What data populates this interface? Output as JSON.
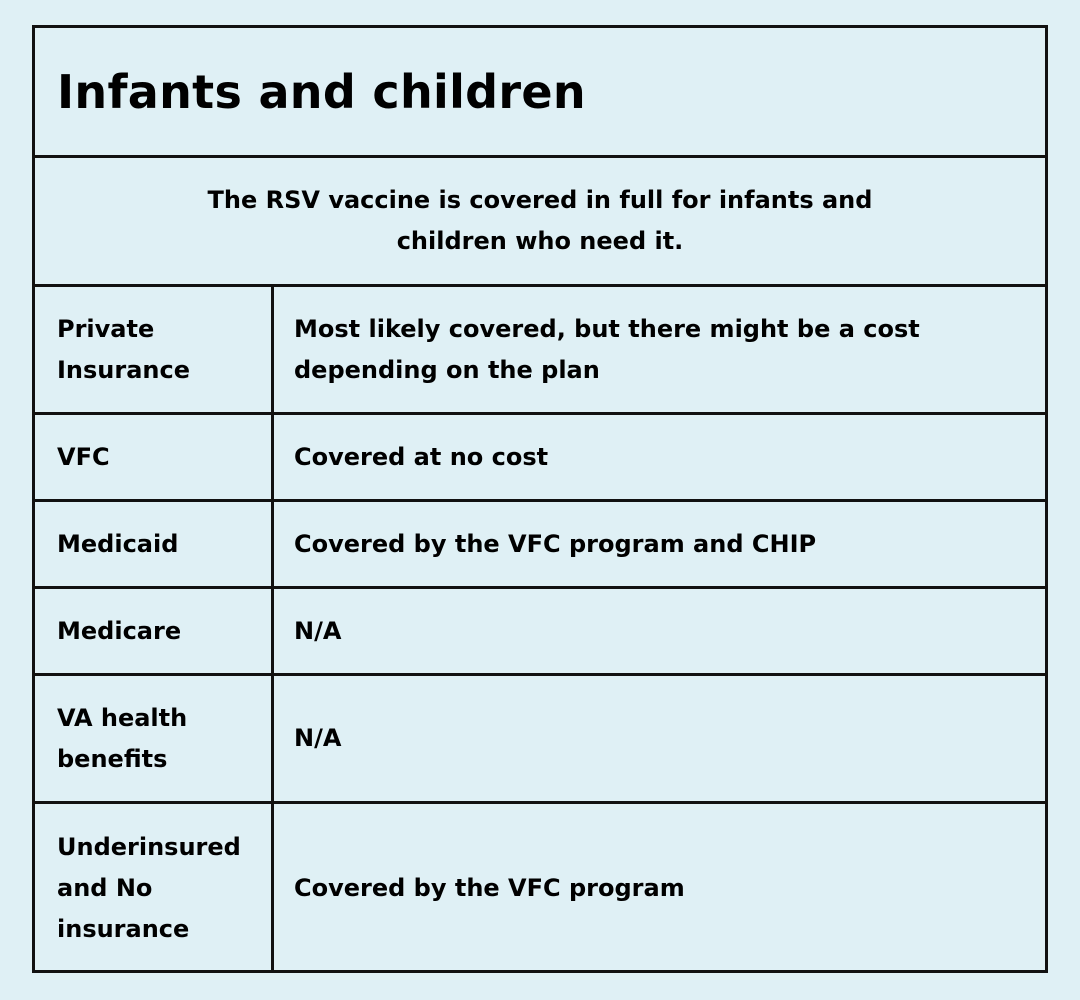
{
  "title": "Infants and children",
  "subtitle": "The RSV vaccine is covered in full for infants and children who need it.",
  "rows": [
    {
      "label": "Private Insurance",
      "value": "Most likely covered, but there might be a cost depending on the plan"
    },
    {
      "label": "VFC",
      "value": "Covered at no cost"
    },
    {
      "label": "Medicaid",
      "value": "Covered by the VFC program and CHIP"
    },
    {
      "label": "Medicare",
      "value": "N/A"
    },
    {
      "label": "VA health benefits",
      "value": "N/A"
    },
    {
      "label": "Underinsured and No insurance",
      "value": "Covered by the VFC program"
    }
  ]
}
